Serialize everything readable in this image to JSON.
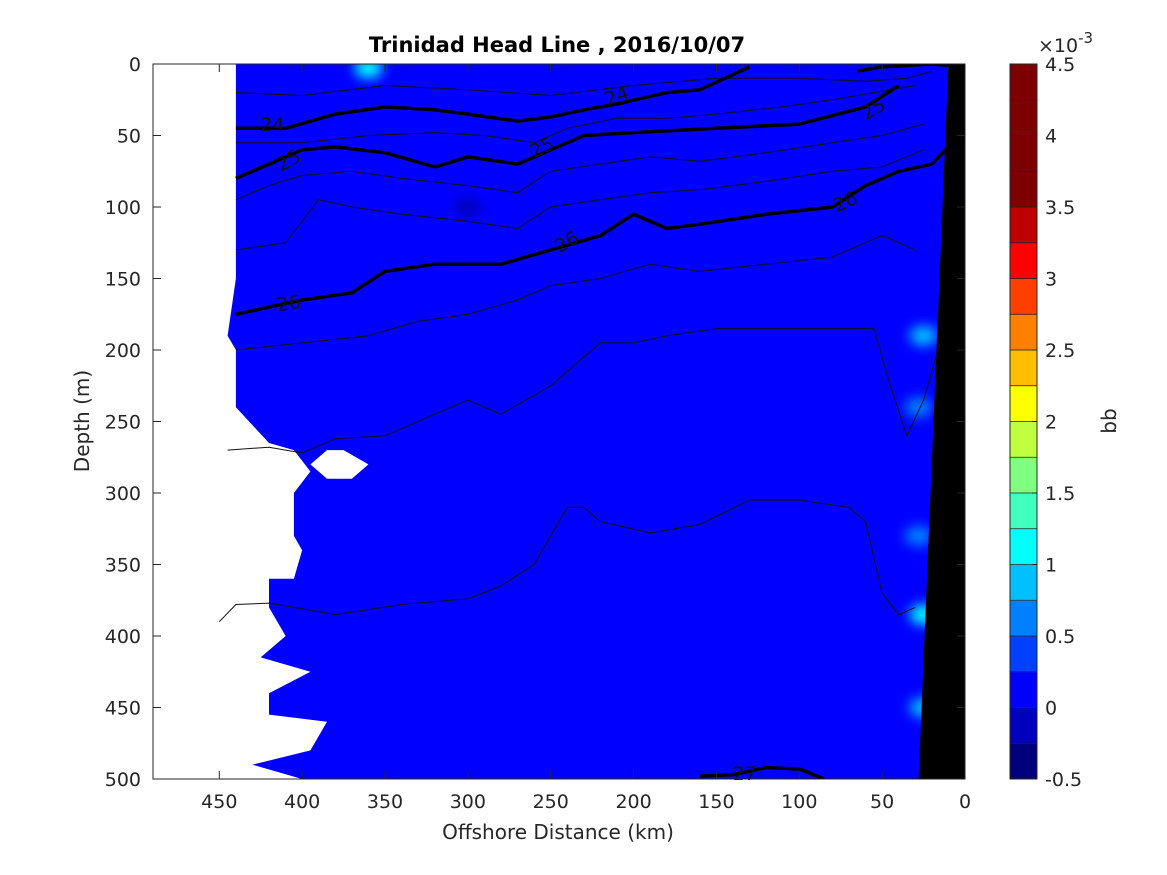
{
  "chart_data": {
    "type": "heatmap",
    "title": "Trinidad Head Line , 2016/10/07",
    "xlabel": "Offshore Distance (km)",
    "ylabel": "Depth (m)",
    "xlim": [
      490,
      0
    ],
    "ylim": [
      0,
      500
    ],
    "x_reversed": true,
    "y_reversed": true,
    "x_ticks": [
      450,
      400,
      350,
      300,
      250,
      200,
      150,
      100,
      50,
      0
    ],
    "y_ticks": [
      0,
      50,
      100,
      150,
      200,
      250,
      300,
      350,
      400,
      450,
      500
    ],
    "colorbar": {
      "label": "bb",
      "exponent_label": "×10",
      "exponent": "-3",
      "range": [
        -0.5,
        4.5
      ],
      "tick_values": [
        -0.5,
        0,
        0.5,
        1,
        1.5,
        2,
        2.5,
        3,
        3.5,
        4,
        4.5
      ],
      "tick_labels": [
        "-0.5",
        "0",
        "0.5",
        "1",
        "1.5",
        "2",
        "2.5",
        "3",
        "3.5",
        "4",
        "4.5"
      ],
      "levels": [
        "#00007f",
        "#0000bf",
        "#0000ff",
        "#0040ff",
        "#0080ff",
        "#00bfff",
        "#00ffff",
        "#40ffbf",
        "#80ff80",
        "#bfff40",
        "#ffff00",
        "#ffbf00",
        "#ff8000",
        "#ff4000",
        "#ff0000",
        "#bf0000",
        "#7f0000",
        "#7f0000",
        "#7f0000",
        "#7f0000"
      ]
    },
    "background_field_value": 0.1,
    "field_extent": [
      [
        440,
        0
      ],
      [
        440,
        150
      ],
      [
        445,
        190
      ],
      [
        440,
        200
      ],
      [
        440,
        240
      ],
      [
        420,
        265
      ],
      [
        405,
        270
      ],
      [
        395,
        285
      ],
      [
        405,
        300
      ],
      [
        405,
        330
      ],
      [
        400,
        340
      ],
      [
        405,
        360
      ],
      [
        420,
        360
      ],
      [
        420,
        380
      ],
      [
        410,
        400
      ],
      [
        425,
        415
      ],
      [
        395,
        425
      ],
      [
        420,
        440
      ],
      [
        420,
        455
      ],
      [
        385,
        460
      ],
      [
        395,
        480
      ],
      [
        430,
        490
      ],
      [
        400,
        500
      ],
      [
        20,
        500
      ],
      [
        10,
        0
      ]
    ],
    "hole_extent": [
      [
        395,
        280
      ],
      [
        385,
        270
      ],
      [
        375,
        270
      ],
      [
        360,
        280
      ],
      [
        370,
        290
      ],
      [
        385,
        290
      ]
    ],
    "patches": [
      {
        "x": 360,
        "y": 3,
        "value": 1.0
      },
      {
        "x": 25,
        "y": 190,
        "value": 0.8
      },
      {
        "x": 28,
        "y": 240,
        "value": 0.6
      },
      {
        "x": 25,
        "y": 385,
        "value": 1.2
      },
      {
        "x": 25,
        "y": 450,
        "value": 0.8
      },
      {
        "x": 28,
        "y": 330,
        "value": 0.6
      },
      {
        "x": 300,
        "y": 100,
        "value": -0.2
      }
    ],
    "seafloor": [
      [
        10,
        0
      ],
      [
        0,
        0
      ],
      [
        0,
        500
      ],
      [
        28,
        500
      ]
    ],
    "contours_major": [
      {
        "level": "24",
        "points": [
          [
            440,
            45
          ],
          [
            410,
            45
          ],
          [
            380,
            35
          ],
          [
            350,
            30
          ],
          [
            320,
            32
          ],
          [
            300,
            35
          ],
          [
            270,
            40
          ],
          [
            250,
            37
          ],
          [
            230,
            32
          ],
          [
            210,
            28
          ],
          [
            180,
            20
          ],
          [
            160,
            18
          ],
          [
            130,
            2
          ]
        ]
      },
      {
        "level": "24",
        "points": [
          [
            65,
            5
          ],
          [
            50,
            2
          ],
          [
            20,
            0
          ],
          [
            10,
            1
          ]
        ]
      },
      {
        "level": "25",
        "points": [
          [
            440,
            80
          ],
          [
            420,
            70
          ],
          [
            400,
            60
          ],
          [
            380,
            58
          ],
          [
            350,
            62
          ],
          [
            320,
            72
          ],
          [
            300,
            65
          ],
          [
            270,
            70
          ],
          [
            250,
            60
          ],
          [
            230,
            50
          ],
          [
            200,
            48
          ],
          [
            150,
            45
          ],
          [
            100,
            42
          ],
          [
            60,
            30
          ],
          [
            40,
            15
          ]
        ]
      },
      {
        "level": "26",
        "points": [
          [
            440,
            175
          ],
          [
            420,
            170
          ],
          [
            400,
            165
          ],
          [
            370,
            160
          ],
          [
            350,
            145
          ],
          [
            320,
            140
          ],
          [
            280,
            140
          ],
          [
            250,
            130
          ],
          [
            220,
            120
          ],
          [
            200,
            105
          ],
          [
            180,
            115
          ],
          [
            160,
            112
          ],
          [
            120,
            105
          ],
          [
            80,
            100
          ],
          [
            60,
            85
          ],
          [
            40,
            75
          ],
          [
            20,
            70
          ],
          [
            10,
            58
          ]
        ]
      },
      {
        "level": "27",
        "points": [
          [
            160,
            498
          ],
          [
            140,
            497
          ],
          [
            120,
            492
          ],
          [
            100,
            493
          ],
          [
            85,
            500
          ]
        ]
      }
    ],
    "contours_minor": [
      {
        "points": [
          [
            440,
            20
          ],
          [
            400,
            22
          ],
          [
            350,
            15
          ],
          [
            300,
            18
          ],
          [
            250,
            22
          ],
          [
            200,
            15
          ],
          [
            150,
            10
          ],
          [
            100,
            10
          ],
          [
            60,
            12
          ],
          [
            35,
            10
          ],
          [
            20,
            5
          ]
        ]
      },
      {
        "points": [
          [
            440,
            55
          ],
          [
            400,
            55
          ],
          [
            360,
            50
          ],
          [
            320,
            48
          ],
          [
            290,
            50
          ],
          [
            260,
            55
          ],
          [
            240,
            45
          ],
          [
            210,
            38
          ],
          [
            180,
            38
          ],
          [
            150,
            35
          ],
          [
            110,
            30
          ],
          [
            80,
            25
          ],
          [
            55,
            20
          ],
          [
            30,
            15
          ]
        ]
      },
      {
        "points": [
          [
            440,
            95
          ],
          [
            420,
            85
          ],
          [
            400,
            78
          ],
          [
            370,
            75
          ],
          [
            340,
            80
          ],
          [
            300,
            85
          ],
          [
            270,
            90
          ],
          [
            250,
            75
          ],
          [
            220,
            70
          ],
          [
            190,
            65
          ],
          [
            160,
            68
          ],
          [
            120,
            62
          ],
          [
            80,
            55
          ],
          [
            50,
            50
          ],
          [
            25,
            42
          ]
        ]
      },
      {
        "points": [
          [
            440,
            130
          ],
          [
            410,
            125
          ],
          [
            390,
            95
          ],
          [
            370,
            100
          ],
          [
            340,
            105
          ],
          [
            300,
            110
          ],
          [
            270,
            115
          ],
          [
            250,
            100
          ],
          [
            220,
            95
          ],
          [
            190,
            90
          ],
          [
            160,
            88
          ],
          [
            120,
            82
          ],
          [
            80,
            75
          ],
          [
            50,
            72
          ],
          [
            25,
            60
          ]
        ]
      },
      {
        "points": [
          [
            440,
            200
          ],
          [
            400,
            195
          ],
          [
            360,
            190
          ],
          [
            330,
            180
          ],
          [
            300,
            175
          ],
          [
            270,
            165
          ],
          [
            250,
            155
          ],
          [
            220,
            150
          ],
          [
            190,
            140
          ],
          [
            160,
            145
          ],
          [
            120,
            140
          ],
          [
            80,
            135
          ],
          [
            50,
            120
          ],
          [
            30,
            130
          ]
        ]
      },
      {
        "points": [
          [
            445,
            270
          ],
          [
            420,
            268
          ],
          [
            400,
            272
          ],
          [
            380,
            262
          ],
          [
            350,
            260
          ],
          [
            320,
            245
          ],
          [
            300,
            235
          ],
          [
            280,
            245
          ],
          [
            250,
            225
          ],
          [
            220,
            195
          ],
          [
            200,
            195
          ],
          [
            180,
            190
          ],
          [
            150,
            185
          ],
          [
            100,
            185
          ],
          [
            55,
            185
          ],
          [
            45,
            225
          ],
          [
            35,
            260
          ],
          [
            25,
            235
          ],
          [
            15,
            195
          ]
        ]
      },
      {
        "points": [
          [
            450,
            390
          ],
          [
            440,
            378
          ],
          [
            420,
            377
          ],
          [
            380,
            385
          ],
          [
            340,
            378
          ],
          [
            300,
            374
          ],
          [
            280,
            365
          ],
          [
            260,
            350
          ],
          [
            240,
            310
          ],
          [
            230,
            310
          ],
          [
            220,
            320
          ],
          [
            190,
            328
          ],
          [
            160,
            322
          ],
          [
            130,
            305
          ],
          [
            100,
            305
          ],
          [
            70,
            310
          ],
          [
            60,
            320
          ],
          [
            50,
            370
          ],
          [
            40,
            385
          ],
          [
            30,
            380
          ]
        ]
      }
    ],
    "contour_labels": [
      {
        "text": "24",
        "x": 418,
        "y": 43,
        "angle": 0
      },
      {
        "text": "24",
        "x": 210,
        "y": 23,
        "angle": -20
      },
      {
        "text": "25",
        "x": 408,
        "y": 68,
        "angle": -30
      },
      {
        "text": "25",
        "x": 55,
        "y": 32,
        "angle": -30
      },
      {
        "text": "25",
        "x": 255,
        "y": 59,
        "angle": -25
      },
      {
        "text": "26",
        "x": 408,
        "y": 168,
        "angle": -8
      },
      {
        "text": "26",
        "x": 240,
        "y": 125,
        "angle": -30
      },
      {
        "text": "26",
        "x": 72,
        "y": 97,
        "angle": -25
      },
      {
        "text": "27",
        "x": 133,
        "y": 497,
        "angle": 0
      }
    ]
  }
}
